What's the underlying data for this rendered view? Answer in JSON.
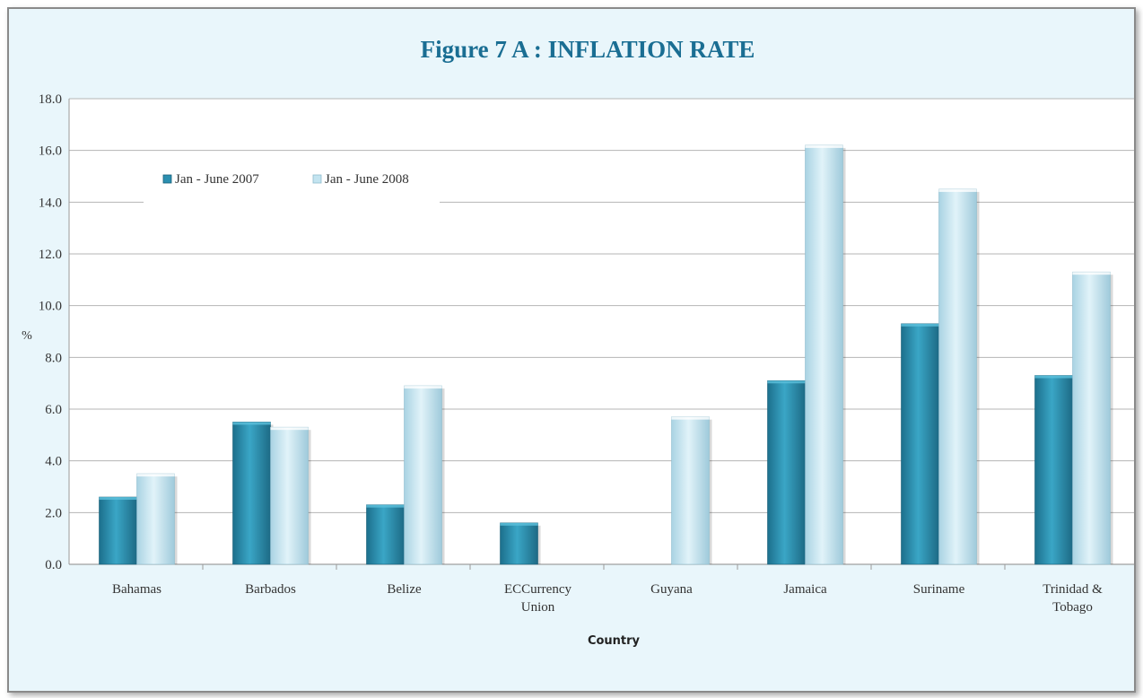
{
  "chart_data": {
    "type": "bar",
    "title": "Figure 7 A : INFLATION RATE",
    "xlabel": "Country",
    "ylabel": "%",
    "ylim": [
      0,
      18
    ],
    "yticks": [
      "0.0",
      "2.0",
      "4.0",
      "6.0",
      "8.0",
      "10.0",
      "12.0",
      "14.0",
      "16.0",
      "18.0"
    ],
    "grid": true,
    "legend_position": "top-left",
    "categories": [
      [
        "Bahamas"
      ],
      [
        "Barbados"
      ],
      [
        "Belize"
      ],
      [
        "ECCurrency",
        "Union"
      ],
      [
        "Guyana"
      ],
      [
        "Jamaica"
      ],
      [
        "Suriname"
      ],
      [
        "Trinidad &",
        "Tobago"
      ]
    ],
    "series": [
      {
        "name": "Jan - June 2007",
        "color": "#2b8fb0",
        "values": [
          2.6,
          5.5,
          2.3,
          1.6,
          null,
          7.1,
          9.3,
          7.3
        ]
      },
      {
        "name": "Jan - June 2008",
        "color": "#c3e4f0",
        "values": [
          3.5,
          5.3,
          6.9,
          null,
          5.7,
          16.2,
          14.5,
          11.3
        ]
      }
    ]
  }
}
